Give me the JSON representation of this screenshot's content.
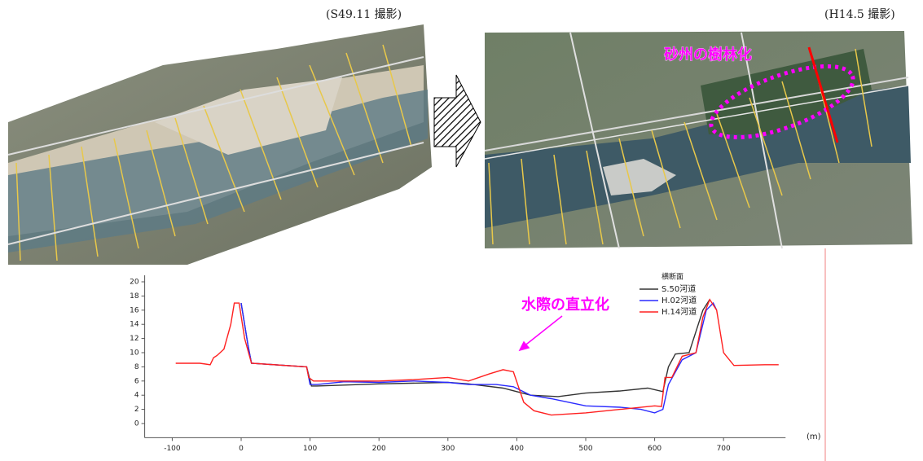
{
  "captions": {
    "left_photo": "(S49.11 撮影)",
    "right_photo": "(H14.5 撮影)",
    "photo_annotation": "砂州の樹林化"
  },
  "chart_data": {
    "type": "line",
    "title": "横断面",
    "annotation": "水際の直立化",
    "x_unit": "(m)",
    "xlim": [
      -140,
      790
    ],
    "xticks": [
      -100,
      0,
      100,
      200,
      300,
      400,
      500,
      600,
      700
    ],
    "ylim": [
      -2,
      20
    ],
    "yticks": [
      0,
      2,
      4,
      6,
      8,
      10,
      12,
      14,
      16,
      18,
      20
    ],
    "series": [
      {
        "name": "S.50河道",
        "color": "#333333",
        "x": [
          0,
          10,
          15,
          95,
          102,
          110,
          200,
          300,
          330,
          380,
          420,
          460,
          500,
          550,
          590,
          612,
          620,
          630,
          650,
          670,
          680
        ],
        "values": [
          17,
          11,
          8.5,
          8,
          5.3,
          5.3,
          5.6,
          5.8,
          5.6,
          5,
          4,
          3.8,
          4.3,
          4.6,
          5,
          4.5,
          8,
          9.8,
          10,
          16,
          17.5
        ]
      },
      {
        "name": "H.02河道",
        "color": "#2a2aff",
        "x": [
          0,
          10,
          15,
          95,
          100,
          110,
          150,
          200,
          250,
          300,
          330,
          370,
          395,
          420,
          450,
          500,
          550,
          580,
          600,
          612,
          620,
          640,
          660,
          675,
          685,
          690
        ],
        "values": [
          17,
          11,
          8.5,
          8,
          5.5,
          5.5,
          5.9,
          5.8,
          6,
          5.8,
          5.5,
          5.5,
          5.2,
          4,
          3.5,
          2.5,
          2.3,
          2,
          1.5,
          2,
          5.5,
          9,
          10,
          16,
          17,
          16
        ]
      },
      {
        "name": "H.14河道",
        "color": "#ff2020",
        "x": [
          -95,
          -60,
          -45,
          -40,
          -35,
          -25,
          -15,
          -10,
          -3,
          5,
          15,
          95,
          98,
          105,
          150,
          200,
          250,
          300,
          330,
          360,
          380,
          395,
          410,
          425,
          450,
          500,
          550,
          600,
          610,
          615,
          625,
          640,
          660,
          670,
          680,
          690,
          700,
          715,
          760,
          780
        ],
        "values": [
          8.5,
          8.5,
          8.3,
          9.3,
          9.6,
          10.5,
          14,
          17,
          17,
          12,
          8.5,
          8,
          6.5,
          6,
          6,
          6,
          6.2,
          6.5,
          6,
          7,
          7.6,
          7.3,
          3,
          1.8,
          1.2,
          1.5,
          2,
          2.5,
          2.4,
          6.5,
          6.5,
          9.5,
          10,
          15,
          17.5,
          16,
          10,
          8.2,
          8.3,
          8.3
        ]
      }
    ]
  }
}
